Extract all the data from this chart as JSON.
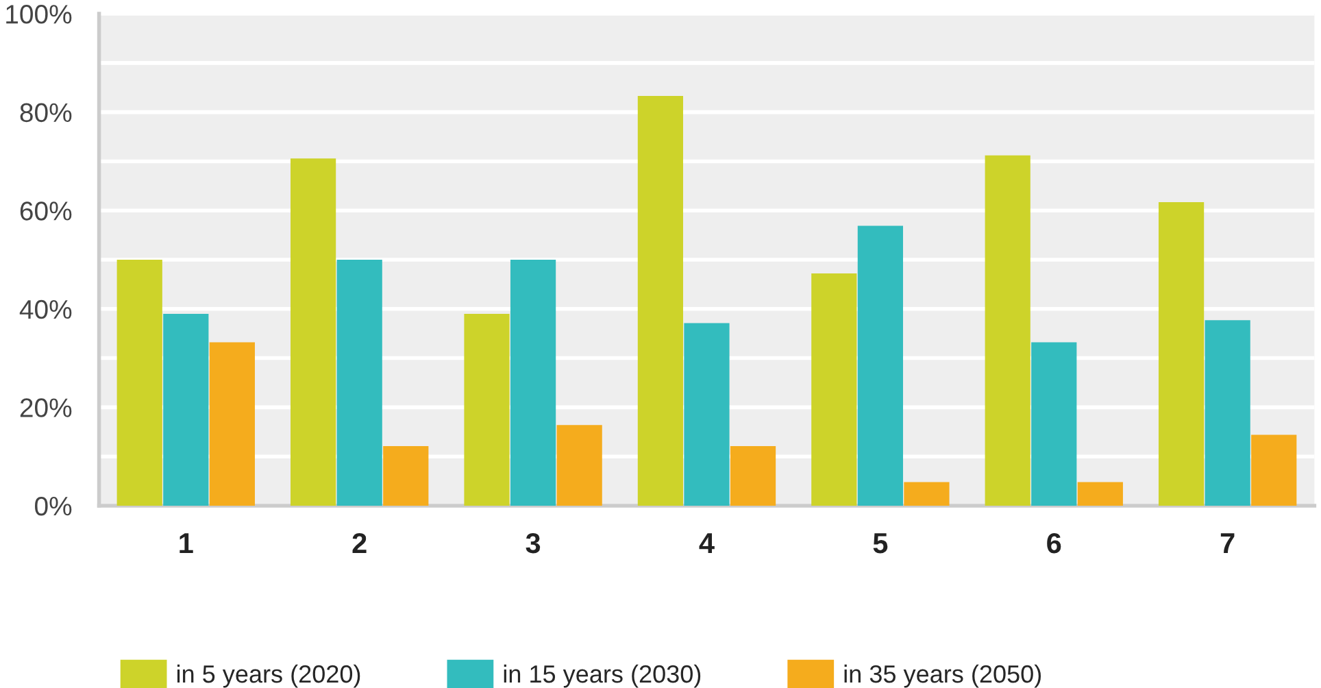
{
  "chart_data": {
    "type": "bar",
    "categories": [
      "1",
      "2",
      "3",
      "4",
      "5",
      "6",
      "7"
    ],
    "series": [
      {
        "name": "in 5 years (2020)",
        "color": "#cdd32a",
        "values": [
          50,
          70.6,
          39,
          83.3,
          47.2,
          71.2,
          61.7
        ]
      },
      {
        "name": "in 15 years (2030)",
        "color": "#33bcbe",
        "values": [
          39,
          50,
          50,
          37.1,
          56.9,
          33.2,
          37.7
        ]
      },
      {
        "name": "in 35 years (2050)",
        "color": "#f5ac1d",
        "values": [
          33.2,
          12.1,
          16.4,
          12.1,
          4.8,
          4.8,
          14.4
        ]
      }
    ],
    "ylim": [
      0,
      100
    ],
    "yticks": [
      {
        "value": 0,
        "label": "0%"
      },
      {
        "value": 10,
        "label": null
      },
      {
        "value": 20,
        "label": "20%"
      },
      {
        "value": 30,
        "label": null
      },
      {
        "value": 40,
        "label": "40%"
      },
      {
        "value": 50,
        "label": null
      },
      {
        "value": 60,
        "label": "60%"
      },
      {
        "value": 70,
        "label": null
      },
      {
        "value": 80,
        "label": "80%"
      },
      {
        "value": 90,
        "label": null
      },
      {
        "value": 100,
        "label": "100%"
      }
    ],
    "grid": "y",
    "legend": "bottom"
  }
}
